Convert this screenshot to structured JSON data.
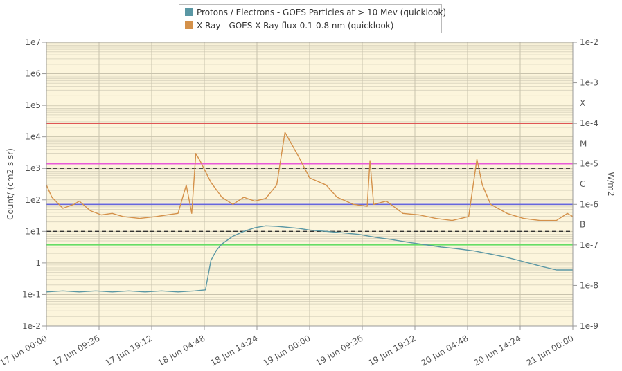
{
  "legend": {
    "series": [
      {
        "name": "Protons / Electrons - GOES Particles at > 10 Mev (quicklook)",
        "color": "#5a97a4"
      },
      {
        "name": "X-Ray - GOES X-Ray flux 0.1-0.8 nm (quicklook)",
        "color": "#d4914a"
      }
    ]
  },
  "chart_data": {
    "type": "line",
    "ylabel_left": "Count/ (cm2 s sr)",
    "ylabel_right": "W/m2",
    "left_axis": {
      "scale": "log",
      "range": [
        0.01,
        10000000
      ],
      "ticks": [
        {
          "value": 10000000,
          "label": "1e7"
        },
        {
          "value": 1000000,
          "label": "1e6"
        },
        {
          "value": 100000,
          "label": "1e5"
        },
        {
          "value": 10000,
          "label": "1e4"
        },
        {
          "value": 1000,
          "label": "1e3"
        },
        {
          "value": 100,
          "label": "1e2"
        },
        {
          "value": 10,
          "label": "1e1"
        },
        {
          "value": 1,
          "label": "1"
        },
        {
          "value": 0.1,
          "label": "1e-1"
        },
        {
          "value": 0.01,
          "label": "1e-2"
        }
      ]
    },
    "right_axis": {
      "scale": "log",
      "range": [
        1e-09,
        0.01
      ],
      "ticks": [
        {
          "value": 0.01,
          "label": "1e-2"
        },
        {
          "value": 0.001,
          "label": "1e-3"
        },
        {
          "value": 0.0001,
          "label": "1e-4"
        },
        {
          "value": 1e-05,
          "label": "1e-5"
        },
        {
          "value": 1e-06,
          "label": "1e-6"
        },
        {
          "value": 1e-07,
          "label": "1e-7"
        },
        {
          "value": 1e-08,
          "label": "1e-8"
        },
        {
          "value": 1e-09,
          "label": "1e-9"
        }
      ],
      "class_labels": [
        {
          "label": "X",
          "value": 0.0003162
        },
        {
          "label": "M",
          "value": 3.162e-05
        },
        {
          "label": "C",
          "value": 3.162e-06
        },
        {
          "label": "B",
          "value": 3.162e-07
        }
      ]
    },
    "x_axis": {
      "range": [
        "2024-06-17 00:00",
        "2024-06-21 00:00"
      ],
      "ticks": [
        "17 Jun 00:00",
        "17 Jun 09:36",
        "17 Jun 19:12",
        "18 Jun 04:48",
        "18 Jun 14:24",
        "19 Jun 00:00",
        "19 Jun 09:36",
        "19 Jun 19:12",
        "20 Jun 04:48",
        "20 Jun 14:24",
        "21 Jun 00:00"
      ]
    },
    "threshold_lines": [
      {
        "axis": "right",
        "value": 0.0001,
        "color": "#e05555",
        "style": "solid"
      },
      {
        "axis": "right",
        "value": 1e-05,
        "color": "#e85ad8",
        "style": "solid"
      },
      {
        "axis": "right",
        "value": 1e-06,
        "color": "#6666dd",
        "style": "solid"
      },
      {
        "axis": "right",
        "value": 1e-07,
        "color": "#66dd66",
        "style": "solid"
      },
      {
        "axis": "left",
        "value": 1000,
        "color": "#333333",
        "style": "dashed"
      },
      {
        "axis": "left",
        "value": 10,
        "color": "#333333",
        "style": "dashed"
      }
    ],
    "grid": true,
    "legend_position": "top-center",
    "series": [
      {
        "name": "Protons / Electrons - GOES Particles at > 10 Mev (quicklook)",
        "axis": "left",
        "color": "#5a97a4",
        "x": [
          "2024-06-17 00:00",
          "2024-06-17 03:00",
          "2024-06-17 06:00",
          "2024-06-17 09:00",
          "2024-06-17 12:00",
          "2024-06-17 15:00",
          "2024-06-17 18:00",
          "2024-06-17 21:00",
          "2024-06-18 00:00",
          "2024-06-18 03:00",
          "2024-06-18 05:00",
          "2024-06-18 05:30",
          "2024-06-18 06:00",
          "2024-06-18 07:00",
          "2024-06-18 08:00",
          "2024-06-18 10:00",
          "2024-06-18 12:00",
          "2024-06-18 14:00",
          "2024-06-18 16:00",
          "2024-06-18 18:00",
          "2024-06-18 20:00",
          "2024-06-18 22:00",
          "2024-06-19 00:00",
          "2024-06-19 03:00",
          "2024-06-19 06:00",
          "2024-06-19 09:00",
          "2024-06-19 12:00",
          "2024-06-19 15:00",
          "2024-06-19 18:00",
          "2024-06-19 21:00",
          "2024-06-20 00:00",
          "2024-06-20 03:00",
          "2024-06-20 06:00",
          "2024-06-20 09:00",
          "2024-06-20 12:00",
          "2024-06-20 15:00",
          "2024-06-20 18:00",
          "2024-06-20 21:00",
          "2024-06-21 00:00"
        ],
        "values": [
          0.12,
          0.13,
          0.12,
          0.13,
          0.12,
          0.13,
          0.12,
          0.13,
          0.12,
          0.13,
          0.14,
          0.4,
          1.2,
          2.5,
          4.0,
          7.0,
          10.0,
          13.0,
          15.0,
          14.5,
          13.5,
          12.5,
          11.0,
          10.0,
          9.0,
          8.0,
          6.5,
          5.5,
          4.5,
          3.8,
          3.2,
          2.8,
          2.4,
          1.9,
          1.5,
          1.1,
          0.8,
          0.6,
          0.6
        ]
      },
      {
        "name": "X-Ray - GOES X-Ray flux 0.1-0.8 nm (quicklook)",
        "axis": "right",
        "color": "#d4914a",
        "x": [
          "2024-06-17 00:00",
          "2024-06-17 01:00",
          "2024-06-17 03:00",
          "2024-06-17 05:00",
          "2024-06-17 06:00",
          "2024-06-17 08:00",
          "2024-06-17 10:00",
          "2024-06-17 12:00",
          "2024-06-17 14:00",
          "2024-06-17 17:00",
          "2024-06-17 20:00",
          "2024-06-17 22:00",
          "2024-06-18 00:00",
          "2024-06-18 01:30",
          "2024-06-18 02:30",
          "2024-06-18 03:15",
          "2024-06-18 04:00",
          "2024-06-18 06:00",
          "2024-06-18 08:00",
          "2024-06-18 10:00",
          "2024-06-18 12:00",
          "2024-06-18 14:00",
          "2024-06-18 16:00",
          "2024-06-18 18:00",
          "2024-06-18 19:30",
          "2024-06-18 22:00",
          "2024-06-19 00:00",
          "2024-06-19 03:00",
          "2024-06-19 05:00",
          "2024-06-19 08:00",
          "2024-06-19 10:30",
          "2024-06-19 11:00",
          "2024-06-19 11:40",
          "2024-06-19 14:00",
          "2024-06-19 17:00",
          "2024-06-19 20:00",
          "2024-06-19 23:00",
          "2024-06-20 02:00",
          "2024-06-20 05:00",
          "2024-06-20 06:30",
          "2024-06-20 07:30",
          "2024-06-20 09:00",
          "2024-06-20 12:00",
          "2024-06-20 15:00",
          "2024-06-20 18:00",
          "2024-06-20 21:00",
          "2024-06-20 23:00",
          "2024-06-21 00:00"
        ],
        "values": [
          3e-06,
          1.5e-06,
          8e-07,
          1e-06,
          1.2e-06,
          7e-07,
          5.5e-07,
          6e-07,
          5e-07,
          4.5e-07,
          5e-07,
          5.5e-07,
          6e-07,
          3e-06,
          6e-07,
          1.8e-05,
          1.2e-05,
          3.5e-06,
          1.5e-06,
          1e-06,
          1.5e-06,
          1.2e-06,
          1.4e-06,
          3e-06,
          6e-05,
          1.5e-05,
          4.5e-06,
          3e-06,
          1.5e-06,
          1e-06,
          9e-07,
          1.2e-05,
          1e-06,
          1.2e-06,
          6e-07,
          5.5e-07,
          4.5e-07,
          4e-07,
          5e-07,
          1.3e-05,
          3e-06,
          1e-06,
          6e-07,
          4.5e-07,
          4e-07,
          4e-07,
          6e-07,
          5e-07
        ]
      }
    ]
  }
}
